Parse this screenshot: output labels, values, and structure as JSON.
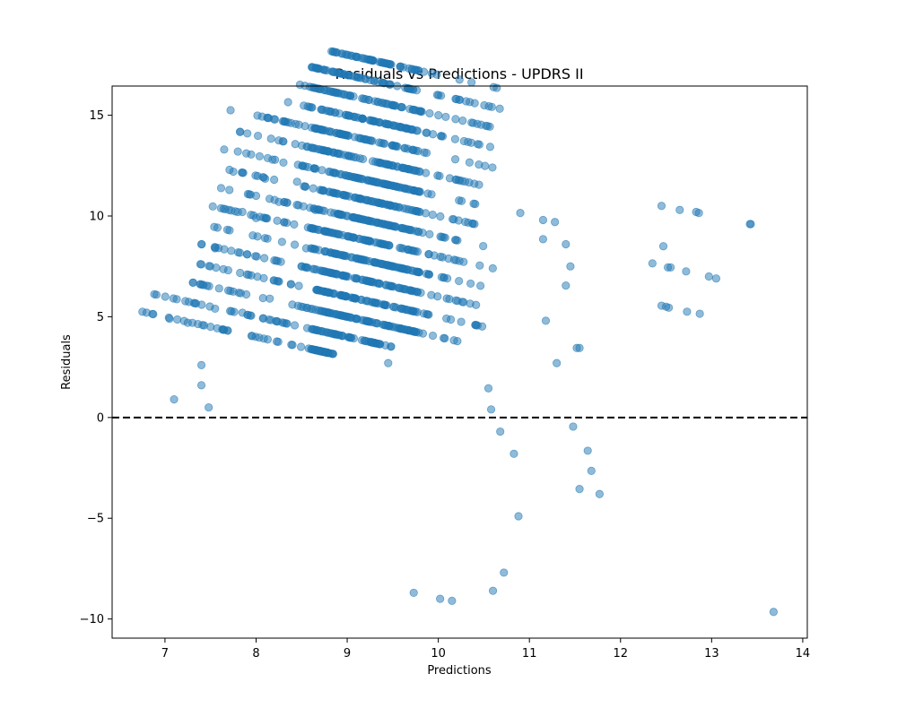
{
  "chart_data": {
    "type": "scatter",
    "title": "Residuals vs Predictions - UPDRS II",
    "xlabel": "Predictions",
    "ylabel": "Residuals",
    "xlim": [
      6.42,
      14.05
    ],
    "ylim": [
      -10.95,
      16.45
    ],
    "xticks": [
      7,
      8,
      9,
      10,
      11,
      12,
      13,
      14
    ],
    "yticks": [
      -10,
      -5,
      0,
      5,
      10,
      15
    ],
    "reference_line": {
      "y": 0,
      "style": "dashed",
      "color": "#000000"
    },
    "marker_color": "#1f77b4",
    "marker_alpha": 0.5,
    "grid": false,
    "band_structure": {
      "description": "Points lie along diagonal bands where predicted + residual equals an integer score",
      "bands": [
        {
          "c": 12,
          "x_range": [
            6.75,
            8.85
          ]
        },
        {
          "c": 13,
          "x_range": [
            6.85,
            9.5
          ]
        },
        {
          "c": 14,
          "x_range": [
            7.3,
            10.5
          ]
        },
        {
          "c": 15,
          "x_range": [
            7.3,
            10.5
          ]
        },
        {
          "c": 16,
          "x_range": [
            7.4,
            10.5
          ]
        },
        {
          "c": 17,
          "x_range": [
            7.5,
            10.5
          ]
        },
        {
          "c": 18,
          "x_range": [
            7.5,
            10.6
          ]
        },
        {
          "c": 19,
          "x_range": [
            7.6,
            10.6
          ]
        },
        {
          "c": 20,
          "x_range": [
            7.7,
            10.5
          ]
        },
        {
          "c": 21,
          "x_range": [
            7.8,
            10.5
          ]
        },
        {
          "c": 22,
          "x_range": [
            7.8,
            10.5
          ]
        },
        {
          "c": 23,
          "x_range": [
            8.0,
            10.6
          ]
        },
        {
          "c": 24,
          "x_range": [
            8.2,
            10.6
          ]
        },
        {
          "c": 25,
          "x_range": [
            8.4,
            10.6
          ]
        },
        {
          "c": 26,
          "x_range": [
            8.6,
            10.7
          ]
        },
        {
          "c": 27,
          "x_range": [
            8.8,
            10.7
          ]
        }
      ]
    },
    "points": [
      [
        7.72,
        15.25
      ],
      [
        8.35,
        14.65
      ],
      [
        7.65,
        13.3
      ],
      [
        7.8,
        13.2
      ],
      [
        8.18,
        12.8
      ],
      [
        8.3,
        12.65
      ],
      [
        7.75,
        12.2
      ],
      [
        8.1,
        11.85
      ],
      [
        7.7,
        10.3
      ],
      [
        7.85,
        10.2
      ],
      [
        8.0,
        9.9
      ],
      [
        7.4,
        8.6
      ],
      [
        7.55,
        8.4
      ],
      [
        7.65,
        8.35
      ],
      [
        7.9,
        8.1
      ],
      [
        7.9,
        7.1
      ],
      [
        7.75,
        6.25
      ],
      [
        7.05,
        4.9
      ],
      [
        7.25,
        4.7
      ],
      [
        7.5,
        4.5
      ],
      [
        7.55,
        5.4
      ],
      [
        7.85,
        5.2
      ],
      [
        7.4,
        2.6
      ],
      [
        7.4,
        1.6
      ],
      [
        7.1,
        0.9
      ],
      [
        7.48,
        0.5
      ],
      [
        8.45,
        11.7
      ],
      [
        8.25,
        10.7
      ],
      [
        8.55,
        8.4
      ],
      [
        8.2,
        7.8
      ],
      [
        8.2,
        6.8
      ],
      [
        8.15,
        5.9
      ],
      [
        8.6,
        5.4
      ],
      [
        8.65,
        10.3
      ],
      [
        9.45,
        2.7
      ],
      [
        10.55,
        1.45
      ],
      [
        10.58,
        0.4
      ],
      [
        10.68,
        -0.7
      ],
      [
        10.83,
        -1.8
      ],
      [
        10.88,
        -4.9
      ],
      [
        10.72,
        -7.7
      ],
      [
        10.6,
        -8.6
      ],
      [
        10.15,
        -9.1
      ],
      [
        10.02,
        -9.0
      ],
      [
        9.73,
        -8.7
      ],
      [
        10.9,
        10.15
      ],
      [
        11.15,
        9.8
      ],
      [
        11.28,
        9.7
      ],
      [
        11.15,
        8.85
      ],
      [
        11.4,
        8.6
      ],
      [
        11.45,
        7.5
      ],
      [
        11.4,
        6.55
      ],
      [
        11.18,
        4.8
      ],
      [
        11.52,
        3.45
      ],
      [
        11.55,
        3.45
      ],
      [
        11.3,
        2.7
      ],
      [
        11.48,
        -0.45
      ],
      [
        11.64,
        -1.65
      ],
      [
        11.68,
        -2.65
      ],
      [
        11.55,
        -3.55
      ],
      [
        11.77,
        -3.8
      ],
      [
        12.35,
        7.65
      ],
      [
        12.45,
        10.5
      ],
      [
        12.47,
        8.5
      ],
      [
        12.52,
        7.45
      ],
      [
        12.55,
        7.45
      ],
      [
        12.45,
        5.55
      ],
      [
        12.5,
        5.5
      ],
      [
        12.53,
        5.45
      ],
      [
        12.65,
        10.3
      ],
      [
        12.72,
        7.25
      ],
      [
        12.73,
        5.25
      ],
      [
        12.83,
        10.2
      ],
      [
        12.86,
        10.15
      ],
      [
        12.87,
        5.15
      ],
      [
        12.97,
        7.0
      ],
      [
        13.05,
        6.9
      ],
      [
        13.42,
        9.6
      ],
      [
        13.43,
        9.6
      ],
      [
        13.68,
        -9.65
      ]
    ]
  }
}
